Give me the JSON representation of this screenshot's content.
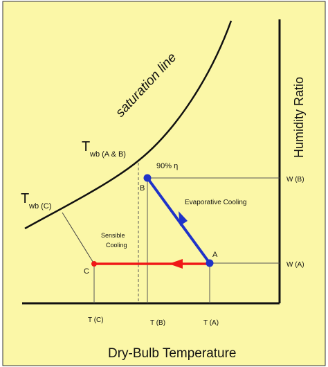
{
  "colors": {
    "background": "#FBF7A7",
    "frame": "#111111",
    "process_blue": "#1F33C8",
    "process_red": "#F01818",
    "guide": "#555555",
    "text": "#111111"
  },
  "labels": {
    "saturation_line": "saturation line",
    "twb_ab_main": "T",
    "twb_ab_sub": "wb (A & B)",
    "twb_c_main": "T",
    "twb_c_sub": "wb (C)",
    "efficiency": "90% η",
    "evaporative": "Evaporative Cooling",
    "sensible_line1": "Sensible",
    "sensible_line2": "Cooling",
    "point_a": "A",
    "point_b": "B",
    "point_c": "C",
    "w_b": "W (B)",
    "w_a": "W (A)",
    "t_c": "T (C)",
    "t_b": "T (B)",
    "t_a": "T (A)",
    "y_axis": "Humidity Ratio",
    "x_axis": "Dry-Bulb Temperature"
  }
}
